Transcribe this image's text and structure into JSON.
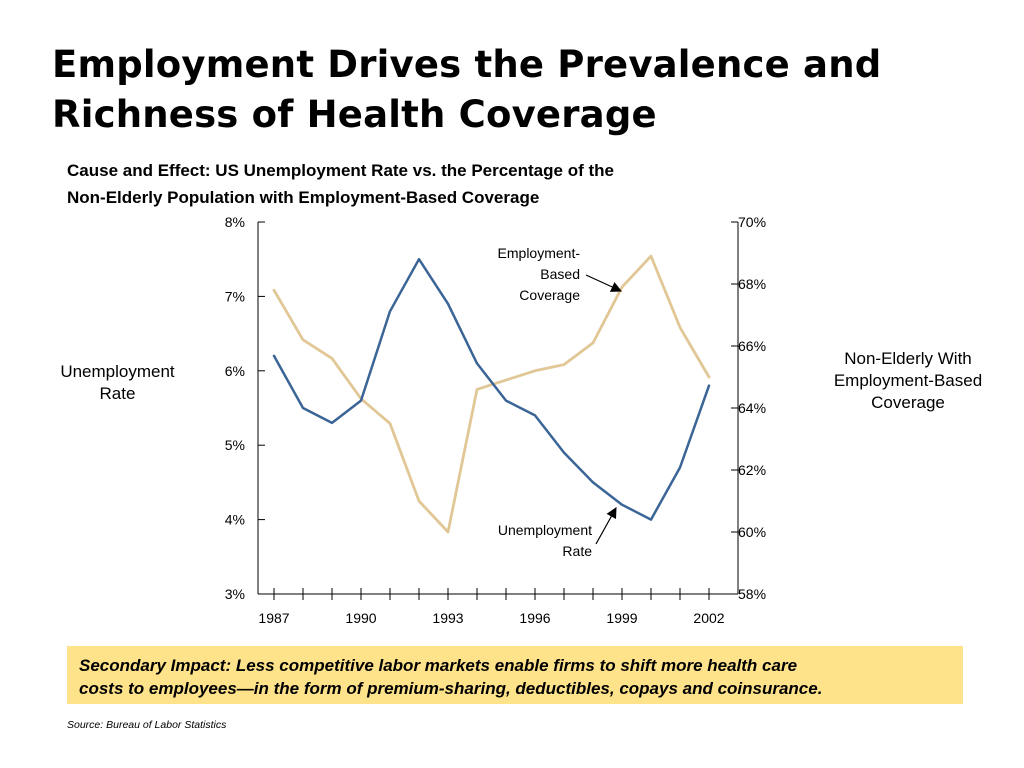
{
  "slide": {
    "title_line1": "Employment Drives the Prevalence and",
    "title_line2": "Richness of Health Coverage"
  },
  "chart_heading": {
    "line1": "Cause and Effect:  US Unemployment Rate vs. the Percentage of the",
    "line2": "Non-Elderly Population with Employment-Based Coverage"
  },
  "colors": {
    "unemployment": "#3a6596",
    "coverage": "#e0c795",
    "impact_box": "#ffe38a"
  },
  "chart_data": {
    "type": "line",
    "title": "Cause and Effect:  US Unemployment Rate vs. the Percentage of the Non-Elderly Population with Employment-Based Coverage",
    "x": [
      1987,
      1988,
      1989,
      1990,
      1991,
      1992,
      1993,
      1994,
      1995,
      1996,
      1997,
      1998,
      1999,
      2000,
      2001,
      2002
    ],
    "x_tick_labels": [
      "1987",
      "1990",
      "1993",
      "1996",
      "1999",
      "2002"
    ],
    "x_tick_values": [
      1987,
      1990,
      1993,
      1996,
      1999,
      2002
    ],
    "xlim": [
      1987,
      2002
    ],
    "left_axis": {
      "label_line1": "Unemployment",
      "label_line2": "Rate",
      "ylim": [
        3,
        8
      ],
      "tick_values": [
        3,
        4,
        5,
        6,
        7,
        8
      ],
      "tick_labels": [
        "3%",
        "4%",
        "5%",
        "6%",
        "7%",
        "8%"
      ]
    },
    "right_axis": {
      "label_line1": "Non-Elderly With",
      "label_line2": "Employment-Based",
      "label_line3": "Coverage",
      "ylim": [
        58,
        70
      ],
      "tick_values": [
        58,
        60,
        62,
        64,
        66,
        68,
        70
      ],
      "tick_labels": [
        "58%",
        "60%",
        "62%",
        "64%",
        "66%",
        "68%",
        "70%"
      ]
    },
    "series": [
      {
        "key": "coverage",
        "axis": "right",
        "values": [
          67.8,
          66.2,
          65.6,
          64.3,
          63.5,
          61.0,
          60.0,
          64.6,
          64.9,
          65.2,
          65.4,
          66.1,
          67.9,
          68.9,
          66.6,
          65.0
        ]
      },
      {
        "key": "unemployment",
        "axis": "left",
        "values": [
          6.2,
          5.5,
          5.3,
          5.6,
          6.8,
          7.5,
          6.9,
          6.1,
          5.6,
          5.4,
          4.9,
          4.5,
          4.2,
          4.0,
          4.7,
          5.8
        ]
      }
    ],
    "annotations": [
      {
        "key": "coverage",
        "line1": "Employment-",
        "line2": "Based",
        "line3": "Coverage"
      },
      {
        "key": "unemployment",
        "line1": "Unemployment",
        "line2": "Rate"
      }
    ]
  },
  "impact": {
    "line1": "Secondary Impact:  Less competitive labor markets enable firms to shift more health care",
    "line2": "costs to employees—in the form of premium-sharing, deductibles, copays and coinsurance."
  },
  "source": "Source:  Bureau of Labor Statistics"
}
